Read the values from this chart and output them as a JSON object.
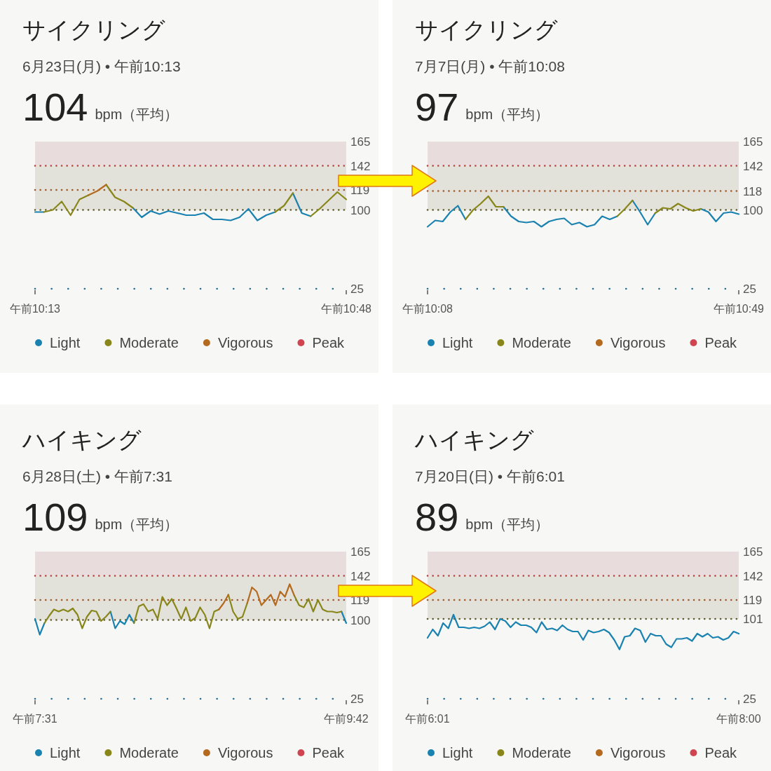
{
  "chart_data": [
    {
      "type": "line",
      "title": "サイクリング",
      "subtitle": "6月23日(月) • 午前10:13",
      "annotations": [
        "104",
        "bpm（平均）"
      ],
      "legend": "bottom",
      "categories": [
        "午前10:13",
        null,
        null,
        null,
        null,
        null,
        null,
        null,
        null,
        null,
        null,
        null,
        null,
        null,
        null,
        null,
        null,
        null,
        null,
        null,
        null,
        null,
        null,
        null,
        null,
        null,
        null,
        null,
        null,
        null,
        null,
        null,
        null,
        null,
        null,
        "午前10:48"
      ],
      "series": [
        {
          "name": "Light",
          "color": "#1a82b0",
          "values": [
            98,
            98,
            null,
            null,
            null,
            null,
            null,
            null,
            null,
            null,
            null,
            102,
            93,
            99,
            96,
            99,
            97,
            95,
            95,
            97,
            91,
            91,
            90,
            93,
            101,
            90,
            95,
            98,
            null,
            116,
            97,
            94,
            null,
            null,
            null,
            null
          ]
        },
        {
          "name": "Moderate",
          "color": "#88861a",
          "values": [
            null,
            98,
            100,
            108,
            95,
            110,
            114,
            null,
            124,
            112,
            108,
            102,
            null,
            null,
            null,
            null,
            null,
            null,
            null,
            null,
            null,
            null,
            null,
            null,
            null,
            null,
            null,
            98,
            104,
            116,
            null,
            94,
            101,
            109,
            117,
            110
          ]
        },
        {
          "name": "Vigorous",
          "color": "#b46a1e",
          "values": [
            null,
            null,
            null,
            null,
            null,
            null,
            114,
            118,
            124,
            null,
            null,
            null,
            null,
            null,
            null,
            null,
            null,
            null,
            null,
            null,
            null,
            null,
            null,
            null,
            null,
            null,
            null,
            null,
            null,
            null,
            null,
            null,
            null,
            null,
            null,
            null
          ]
        },
        {
          "name": "Peak",
          "color": "#d04450",
          "values": [
            null,
            null,
            null,
            null,
            null,
            null,
            null,
            null,
            null,
            null,
            null,
            null,
            null,
            null,
            null,
            null,
            null,
            null,
            null,
            null,
            null,
            null,
            null,
            null,
            null,
            null,
            null,
            null,
            null,
            null,
            null,
            null,
            null,
            null,
            null,
            null
          ]
        }
      ],
      "ylim": [
        25,
        165
      ],
      "yticks": [
        25,
        100,
        119,
        142,
        165
      ],
      "bands": [
        {
          "axis": "y",
          "from": 100,
          "to": 142,
          "color": "#e3e2da"
        },
        {
          "axis": "y",
          "from": 142,
          "to": 165,
          "color": "#e8dcdd"
        }
      ],
      "ref_lines": [
        {
          "axis": "y",
          "value": 142,
          "color": "#b5433e",
          "line_style": "dotted"
        },
        {
          "axis": "y",
          "value": 119,
          "color": "#a0582a",
          "line_style": "dotted"
        },
        {
          "axis": "y",
          "value": 100,
          "color": "#5e5a2a",
          "line_style": "dotted"
        }
      ]
    },
    {
      "type": "line",
      "title": "サイクリング",
      "subtitle": "7月7日(月) • 午前10:08",
      "annotations": [
        "97",
        "bpm（平均）"
      ],
      "legend": "bottom",
      "categories": [
        "午前10:08",
        null,
        null,
        null,
        null,
        null,
        null,
        null,
        null,
        null,
        null,
        null,
        null,
        null,
        null,
        null,
        null,
        null,
        null,
        null,
        null,
        null,
        null,
        null,
        null,
        null,
        null,
        null,
        null,
        null,
        null,
        null,
        null,
        null,
        null,
        null,
        null,
        null,
        null,
        null,
        null,
        "午前10:49"
      ],
      "series": [
        {
          "name": "Light",
          "color": "#1a82b0",
          "values": [
            84,
            90,
            89,
            98,
            104,
            91,
            null,
            null,
            null,
            null,
            103,
            94,
            89,
            88,
            89,
            84,
            89,
            91,
            92,
            86,
            88,
            84,
            86,
            94,
            91,
            94,
            null,
            109,
            98,
            86,
            97,
            null,
            null,
            null,
            null,
            null,
            101,
            98,
            89,
            97,
            98,
            96
          ]
        },
        {
          "name": "Moderate",
          "color": "#88861a",
          "values": [
            null,
            null,
            null,
            null,
            null,
            91,
            100,
            106,
            113,
            103,
            103,
            null,
            null,
            null,
            null,
            null,
            null,
            null,
            null,
            null,
            null,
            null,
            null,
            null,
            null,
            94,
            101,
            109,
            null,
            null,
            97,
            102,
            101,
            106,
            102,
            99,
            101,
            null,
            null,
            null,
            null,
            null
          ]
        },
        {
          "name": "Vigorous",
          "color": "#b46a1e",
          "values": [
            null,
            null,
            null,
            null,
            null,
            null,
            null,
            null,
            null,
            null,
            null,
            null,
            null,
            null,
            null,
            null,
            null,
            null,
            null,
            null,
            null,
            null,
            null,
            null,
            null,
            null,
            null,
            null,
            null,
            null,
            null,
            null,
            null,
            null,
            null,
            null,
            null,
            null,
            null,
            null,
            null,
            null
          ]
        },
        {
          "name": "Peak",
          "color": "#d04450",
          "values": [
            null,
            null,
            null,
            null,
            null,
            null,
            null,
            null,
            null,
            null,
            null,
            null,
            null,
            null,
            null,
            null,
            null,
            null,
            null,
            null,
            null,
            null,
            null,
            null,
            null,
            null,
            null,
            null,
            null,
            null,
            null,
            null,
            null,
            null,
            null,
            null,
            null,
            null,
            null,
            null,
            null,
            null
          ]
        }
      ],
      "ylim": [
        25,
        165
      ],
      "yticks": [
        25,
        100,
        118,
        142,
        165
      ],
      "bands": [
        {
          "axis": "y",
          "from": 100,
          "to": 142,
          "color": "#e3e2da"
        },
        {
          "axis": "y",
          "from": 142,
          "to": 165,
          "color": "#e8dcdd"
        }
      ],
      "ref_lines": [
        {
          "axis": "y",
          "value": 142,
          "color": "#b5433e",
          "line_style": "dotted"
        },
        {
          "axis": "y",
          "value": 118,
          "color": "#a0582a",
          "line_style": "dotted"
        },
        {
          "axis": "y",
          "value": 100,
          "color": "#5e5a2a",
          "line_style": "dotted"
        }
      ]
    },
    {
      "type": "line",
      "title": "ハイキング",
      "subtitle": "6月28日(土) • 午前7:31",
      "annotations": [
        "109",
        "bpm（平均）"
      ],
      "legend": "bottom",
      "categories": [
        "午前7:31",
        null,
        null,
        null,
        null,
        null,
        null,
        null,
        null,
        null,
        null,
        null,
        null,
        null,
        null,
        null,
        null,
        null,
        null,
        null,
        null,
        null,
        null,
        null,
        null,
        null,
        null,
        null,
        null,
        null,
        null,
        null,
        null,
        null,
        null,
        null,
        null,
        null,
        null,
        null,
        null,
        null,
        null,
        null,
        null,
        null,
        null,
        null,
        null,
        null,
        null,
        null,
        null,
        null,
        null,
        null,
        null,
        null,
        null,
        null,
        null,
        null,
        null,
        null,
        null,
        null,
        "午前9:42"
      ],
      "series": [
        {
          "name": "Light",
          "color": "#1a82b0",
          "values": [
            101,
            86,
            97,
            null,
            null,
            null,
            null,
            null,
            null,
            null,
            null,
            null,
            null,
            null,
            null,
            null,
            108,
            92,
            99,
            96,
            105,
            97,
            null,
            null,
            null,
            null,
            null,
            null,
            null,
            null,
            null,
            null,
            null,
            null,
            null,
            null,
            null,
            null,
            null,
            null,
            null,
            null,
            null,
            null,
            null,
            null,
            null,
            null,
            null,
            null,
            null,
            null,
            null,
            null,
            null,
            null,
            null,
            null,
            null,
            null,
            null,
            null,
            null,
            null,
            null,
            108,
            97
          ]
        },
        {
          "name": "Moderate",
          "color": "#88861a",
          "values": [
            null,
            null,
            97,
            104,
            110,
            108,
            110,
            108,
            111,
            105,
            92,
            103,
            109,
            108,
            99,
            103,
            108,
            null,
            null,
            null,
            null,
            97,
            113,
            115,
            108,
            110,
            101,
            122,
            114,
            120,
            111,
            101,
            112,
            99,
            102,
            112,
            105,
            92,
            108,
            110,
            null,
            124,
            108,
            101,
            103,
            116,
            null,
            null,
            null,
            null,
            null,
            null,
            null,
            null,
            null,
            123,
            114,
            112,
            120,
            108,
            119,
            110,
            108,
            108,
            107,
            108,
            null
          ]
        },
        {
          "name": "Vigorous",
          "color": "#b46a1e",
          "values": [
            null,
            null,
            null,
            null,
            null,
            null,
            null,
            null,
            null,
            null,
            null,
            null,
            null,
            null,
            null,
            null,
            null,
            null,
            null,
            null,
            null,
            null,
            null,
            null,
            null,
            null,
            null,
            null,
            null,
            null,
            null,
            null,
            null,
            null,
            null,
            null,
            null,
            null,
            null,
            110,
            116,
            124,
            null,
            null,
            null,
            116,
            131,
            127,
            114,
            119,
            124,
            114,
            127,
            122,
            134,
            123,
            null,
            null,
            null,
            null,
            null,
            null,
            null,
            null,
            null,
            null,
            null
          ]
        },
        {
          "name": "Peak",
          "color": "#d04450",
          "values": [
            null,
            null,
            null,
            null,
            null,
            null,
            null,
            null,
            null,
            null,
            null,
            null,
            null,
            null,
            null,
            null,
            null,
            null,
            null,
            null,
            null,
            null,
            null,
            null,
            null,
            null,
            null,
            null,
            null,
            null,
            null,
            null,
            null,
            null,
            null,
            null,
            null,
            null,
            null,
            null,
            null,
            null,
            null,
            null,
            null,
            null,
            null,
            null,
            null,
            null,
            null,
            null,
            null,
            null,
            null,
            null,
            null,
            null,
            null,
            null,
            null,
            null,
            null,
            null,
            null,
            null,
            null
          ]
        }
      ],
      "ylim": [
        25,
        165
      ],
      "yticks": [
        25,
        100,
        119,
        142,
        165
      ],
      "bands": [
        {
          "axis": "y",
          "from": 100,
          "to": 142,
          "color": "#e3e2da"
        },
        {
          "axis": "y",
          "from": 142,
          "to": 165,
          "color": "#e8dcdd"
        }
      ],
      "ref_lines": [
        {
          "axis": "y",
          "value": 142,
          "color": "#b5433e",
          "line_style": "dotted"
        },
        {
          "axis": "y",
          "value": 119,
          "color": "#a0582a",
          "line_style": "dotted"
        },
        {
          "axis": "y",
          "value": 100,
          "color": "#5e5a2a",
          "line_style": "dotted"
        }
      ]
    },
    {
      "type": "line",
      "title": "ハイキング",
      "subtitle": "7月20日(日) • 午前6:01",
      "annotations": [
        "89",
        "bpm（平均）"
      ],
      "legend": "bottom",
      "categories": [
        "午前6:01",
        null,
        null,
        null,
        null,
        null,
        null,
        null,
        null,
        null,
        null,
        null,
        null,
        null,
        null,
        null,
        null,
        null,
        null,
        null,
        null,
        null,
        null,
        null,
        null,
        null,
        null,
        null,
        null,
        null,
        null,
        null,
        null,
        null,
        null,
        null,
        null,
        null,
        null,
        null,
        null,
        null,
        null,
        null,
        null,
        null,
        null,
        null,
        null,
        null,
        null,
        null,
        null,
        null,
        null,
        null,
        null,
        null,
        null,
        null,
        "午前8:00"
      ],
      "series": [
        {
          "name": "Light",
          "color": "#1a82b0",
          "values": [
            83,
            91,
            85,
            97,
            92,
            105,
            93,
            93,
            92,
            93,
            92,
            94,
            98,
            91,
            101,
            99,
            93,
            98,
            95,
            95,
            93,
            88,
            98,
            91,
            92,
            90,
            95,
            91,
            89,
            89,
            81,
            90,
            88,
            89,
            91,
            88,
            81,
            72,
            84,
            85,
            92,
            90,
            79,
            87,
            85,
            85,
            77,
            74,
            82,
            82,
            83,
            80,
            87,
            84,
            87,
            83,
            84,
            81,
            83,
            89,
            87
          ]
        },
        {
          "name": "Moderate",
          "color": "#88861a",
          "values": [
            null,
            null,
            null,
            null,
            null,
            null,
            null,
            null,
            null,
            null,
            null,
            null,
            null,
            null,
            null,
            null,
            null,
            null,
            null,
            null,
            null,
            null,
            null,
            null,
            null,
            null,
            null,
            null,
            null,
            null,
            null,
            null,
            null,
            null,
            null,
            null,
            null,
            null,
            null,
            null,
            null,
            null,
            null,
            null,
            null,
            null,
            null,
            null,
            null,
            null,
            null,
            null,
            null,
            null,
            null,
            null,
            null,
            null,
            null,
            null,
            null
          ]
        },
        {
          "name": "Vigorous",
          "color": "#b46a1e",
          "values": [
            null,
            null,
            null,
            null,
            null,
            null,
            null,
            null,
            null,
            null,
            null,
            null,
            null,
            null,
            null,
            null,
            null,
            null,
            null,
            null,
            null,
            null,
            null,
            null,
            null,
            null,
            null,
            null,
            null,
            null,
            null,
            null,
            null,
            null,
            null,
            null,
            null,
            null,
            null,
            null,
            null,
            null,
            null,
            null,
            null,
            null,
            null,
            null,
            null,
            null,
            null,
            null,
            null,
            null,
            null,
            null,
            null,
            null,
            null,
            null,
            null
          ]
        },
        {
          "name": "Peak",
          "color": "#d04450",
          "values": [
            null,
            null,
            null,
            null,
            null,
            null,
            null,
            null,
            null,
            null,
            null,
            null,
            null,
            null,
            null,
            null,
            null,
            null,
            null,
            null,
            null,
            null,
            null,
            null,
            null,
            null,
            null,
            null,
            null,
            null,
            null,
            null,
            null,
            null,
            null,
            null,
            null,
            null,
            null,
            null,
            null,
            null,
            null,
            null,
            null,
            null,
            null,
            null,
            null,
            null,
            null,
            null,
            null,
            null,
            null,
            null,
            null,
            null,
            null,
            null,
            null
          ]
        }
      ],
      "ylim": [
        25,
        165
      ],
      "yticks": [
        25,
        101,
        119,
        142,
        165
      ],
      "bands": [
        {
          "axis": "y",
          "from": 101,
          "to": 142,
          "color": "#e3e2da"
        },
        {
          "axis": "y",
          "from": 142,
          "to": 165,
          "color": "#e8dcdd"
        }
      ],
      "ref_lines": [
        {
          "axis": "y",
          "value": 142,
          "color": "#b5433e",
          "line_style": "dotted"
        },
        {
          "axis": "y",
          "value": 119,
          "color": "#a0582a",
          "line_style": "dotted"
        },
        {
          "axis": "y",
          "value": 101,
          "color": "#5e5a2a",
          "line_style": "dotted"
        }
      ]
    }
  ]
}
